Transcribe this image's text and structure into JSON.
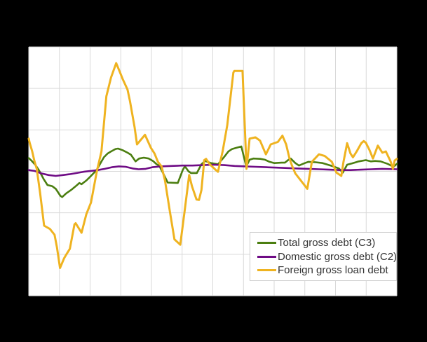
{
  "page": {
    "background_color": "#000000"
  },
  "chart_data": {
    "type": "line",
    "title": "",
    "plot_background": "#ffffff",
    "grid": true,
    "grid_color": "#d9d9d9",
    "axis_tick_labels_visible": false,
    "x_range": [
      0,
      12
    ],
    "x_gridline_step": 1,
    "ylim": [
      -30,
      30
    ],
    "y_gridline_step": 10,
    "note": "Axis tick labels are not visible in the image; x is in gridline units (12 intervals), y in estimated units where one horizontal gridline interval = 10 and the middle gridline = 0.",
    "legend": {
      "position": "inside-bottom-right",
      "background": "#ffffff",
      "border_color": "#cccccc",
      "text_color": "#333333"
    },
    "series": [
      {
        "name": "Total gross debt (C3)",
        "color": "#4b7e10",
        "line_width": 2.6,
        "points": [
          [
            0.0,
            3.2
          ],
          [
            0.1,
            2.5
          ],
          [
            0.21,
            1.6
          ],
          [
            0.33,
            0.3
          ],
          [
            0.49,
            -1.9
          ],
          [
            0.61,
            -3.3
          ],
          [
            0.77,
            -3.6
          ],
          [
            0.88,
            -4.2
          ],
          [
            1.03,
            -5.9
          ],
          [
            1.09,
            -6.2
          ],
          [
            1.22,
            -5.3
          ],
          [
            1.38,
            -4.5
          ],
          [
            1.53,
            -3.6
          ],
          [
            1.65,
            -2.8
          ],
          [
            1.72,
            -3.1
          ],
          [
            1.88,
            -2.2
          ],
          [
            2.03,
            -1.1
          ],
          [
            2.21,
            0.3
          ],
          [
            2.34,
            2.0
          ],
          [
            2.45,
            3.4
          ],
          [
            2.57,
            4.3
          ],
          [
            2.68,
            4.8
          ],
          [
            2.83,
            5.4
          ],
          [
            2.91,
            5.5
          ],
          [
            3.06,
            5.1
          ],
          [
            3.22,
            4.5
          ],
          [
            3.33,
            4.0
          ],
          [
            3.48,
            2.4
          ],
          [
            3.6,
            3.1
          ],
          [
            3.75,
            3.3
          ],
          [
            3.91,
            3.1
          ],
          [
            4.05,
            2.5
          ],
          [
            4.17,
            1.7
          ],
          [
            4.25,
            1.4
          ],
          [
            4.37,
            -0.3
          ],
          [
            4.53,
            -2.7
          ],
          [
            4.86,
            -2.8
          ],
          [
            5.02,
            0.3
          ],
          [
            5.09,
            1.2
          ],
          [
            5.21,
            0.0
          ],
          [
            5.29,
            -0.4
          ],
          [
            5.48,
            -0.4
          ],
          [
            5.63,
            1.7
          ],
          [
            5.75,
            2.5
          ],
          [
            5.94,
            2.0
          ],
          [
            6.17,
            1.7
          ],
          [
            6.36,
            3.4
          ],
          [
            6.51,
            4.8
          ],
          [
            6.63,
            5.4
          ],
          [
            6.78,
            5.7
          ],
          [
            6.93,
            6.0
          ],
          [
            7.09,
            1.2
          ],
          [
            7.2,
            2.8
          ],
          [
            7.32,
            3.1
          ],
          [
            7.55,
            3.0
          ],
          [
            7.7,
            2.8
          ],
          [
            7.85,
            2.3
          ],
          [
            8.01,
            2.0
          ],
          [
            8.24,
            2.1
          ],
          [
            8.35,
            2.1
          ],
          [
            8.47,
            2.8
          ],
          [
            8.54,
            3.1
          ],
          [
            8.69,
            2.0
          ],
          [
            8.81,
            1.4
          ],
          [
            9.0,
            2.0
          ],
          [
            9.12,
            2.3
          ],
          [
            9.35,
            2.2
          ],
          [
            9.58,
            2.0
          ],
          [
            9.88,
            1.3
          ],
          [
            10.11,
            0.7
          ],
          [
            10.24,
            -0.3
          ],
          [
            10.38,
            1.6
          ],
          [
            10.53,
            1.9
          ],
          [
            10.76,
            2.4
          ],
          [
            10.99,
            2.7
          ],
          [
            11.15,
            2.4
          ],
          [
            11.29,
            2.5
          ],
          [
            11.47,
            2.4
          ],
          [
            11.7,
            1.8
          ],
          [
            11.89,
            1.1
          ],
          [
            12.0,
            1.8
          ]
        ]
      },
      {
        "name": "Domestic gross debt (C2)",
        "color": "#6f0c85",
        "line_width": 2.6,
        "points": [
          [
            0.0,
            0.3
          ],
          [
            0.19,
            0.1
          ],
          [
            0.42,
            -0.5
          ],
          [
            0.65,
            -0.9
          ],
          [
            0.88,
            -1.1
          ],
          [
            1.11,
            -0.9
          ],
          [
            1.33,
            -0.7
          ],
          [
            1.56,
            -0.4
          ],
          [
            1.79,
            -0.1
          ],
          [
            2.02,
            0.1
          ],
          [
            2.25,
            0.3
          ],
          [
            2.48,
            0.6
          ],
          [
            2.71,
            1.0
          ],
          [
            2.94,
            1.2
          ],
          [
            3.16,
            1.1
          ],
          [
            3.39,
            0.7
          ],
          [
            3.58,
            0.5
          ],
          [
            3.81,
            0.6
          ],
          [
            4.03,
            1.0
          ],
          [
            4.31,
            1.2
          ],
          [
            4.65,
            1.3
          ],
          [
            5.0,
            1.4
          ],
          [
            5.34,
            1.4
          ],
          [
            5.68,
            1.5
          ],
          [
            6.03,
            1.6
          ],
          [
            6.37,
            1.5
          ],
          [
            6.71,
            1.3
          ],
          [
            7.05,
            1.2
          ],
          [
            7.4,
            1.1
          ],
          [
            7.74,
            1.0
          ],
          [
            8.08,
            0.9
          ],
          [
            8.43,
            0.8
          ],
          [
            8.77,
            0.7
          ],
          [
            9.11,
            0.6
          ],
          [
            9.46,
            0.5
          ],
          [
            9.8,
            0.4
          ],
          [
            10.14,
            0.3
          ],
          [
            10.49,
            0.3
          ],
          [
            10.83,
            0.4
          ],
          [
            11.17,
            0.5
          ],
          [
            11.52,
            0.6
          ],
          [
            12.0,
            0.5
          ]
        ]
      },
      {
        "name": "Foreign gross loan debt",
        "color": "#efb320",
        "line_width": 3,
        "points": [
          [
            0.0,
            7.9
          ],
          [
            0.03,
            6.9
          ],
          [
            0.11,
            4.9
          ],
          [
            0.18,
            2.6
          ],
          [
            0.26,
            0.6
          ],
          [
            0.37,
            -5.2
          ],
          [
            0.5,
            -13.1
          ],
          [
            0.69,
            -13.9
          ],
          [
            0.84,
            -15.3
          ],
          [
            0.92,
            -18.4
          ],
          [
            1.02,
            -23.3
          ],
          [
            1.15,
            -21.0
          ],
          [
            1.22,
            -20.1
          ],
          [
            1.34,
            -18.7
          ],
          [
            1.49,
            -12.8
          ],
          [
            1.53,
            -12.5
          ],
          [
            1.72,
            -14.8
          ],
          [
            1.88,
            -10.3
          ],
          [
            2.03,
            -7.5
          ],
          [
            2.22,
            0.0
          ],
          [
            2.37,
            4.8
          ],
          [
            2.53,
            18.1
          ],
          [
            2.68,
            22.6
          ],
          [
            2.85,
            26.1
          ],
          [
            2.95,
            24.3
          ],
          [
            3.06,
            22.3
          ],
          [
            3.22,
            19.7
          ],
          [
            3.3,
            16.9
          ],
          [
            3.45,
            10.7
          ],
          [
            3.53,
            6.5
          ],
          [
            3.79,
            8.8
          ],
          [
            3.98,
            5.7
          ],
          [
            4.1,
            4.3
          ],
          [
            4.21,
            2.3
          ],
          [
            4.33,
            1.2
          ],
          [
            4.44,
            -2.2
          ],
          [
            4.6,
            -9.6
          ],
          [
            4.75,
            -16.4
          ],
          [
            4.94,
            -17.7
          ],
          [
            5.08,
            -9.6
          ],
          [
            5.23,
            -0.9
          ],
          [
            5.32,
            -3.6
          ],
          [
            5.47,
            -6.8
          ],
          [
            5.55,
            -6.9
          ],
          [
            5.63,
            -4.5
          ],
          [
            5.72,
            2.7
          ],
          [
            5.78,
            3.0
          ],
          [
            5.9,
            1.7
          ],
          [
            6.1,
            0.3
          ],
          [
            6.17,
            -0.1
          ],
          [
            6.32,
            4.8
          ],
          [
            6.47,
            11.1
          ],
          [
            6.67,
            23.8
          ],
          [
            6.7,
            24.2
          ],
          [
            6.97,
            24.2
          ],
          [
            7.1,
            0.6
          ],
          [
            7.2,
            7.9
          ],
          [
            7.39,
            8.2
          ],
          [
            7.54,
            7.4
          ],
          [
            7.73,
            4.1
          ],
          [
            7.89,
            6.5
          ],
          [
            8.12,
            7.1
          ],
          [
            8.27,
            8.6
          ],
          [
            8.39,
            6.5
          ],
          [
            8.5,
            3.1
          ],
          [
            8.58,
            1.4
          ],
          [
            8.69,
            -0.5
          ],
          [
            9.08,
            -4.2
          ],
          [
            9.23,
            2.3
          ],
          [
            9.46,
            4.1
          ],
          [
            9.65,
            3.7
          ],
          [
            9.88,
            2.3
          ],
          [
            10.03,
            -0.3
          ],
          [
            10.19,
            -1.1
          ],
          [
            10.26,
            2.3
          ],
          [
            10.38,
            6.8
          ],
          [
            10.49,
            4.3
          ],
          [
            10.57,
            3.4
          ],
          [
            10.69,
            4.8
          ],
          [
            10.84,
            6.8
          ],
          [
            10.92,
            7.3
          ],
          [
            10.99,
            6.9
          ],
          [
            11.11,
            5.1
          ],
          [
            11.22,
            3.1
          ],
          [
            11.38,
            6.2
          ],
          [
            11.45,
            5.4
          ],
          [
            11.53,
            4.5
          ],
          [
            11.64,
            4.8
          ],
          [
            11.8,
            2.3
          ],
          [
            11.87,
            0.6
          ],
          [
            11.93,
            2.6
          ],
          [
            12.0,
            3.0
          ]
        ]
      }
    ]
  }
}
